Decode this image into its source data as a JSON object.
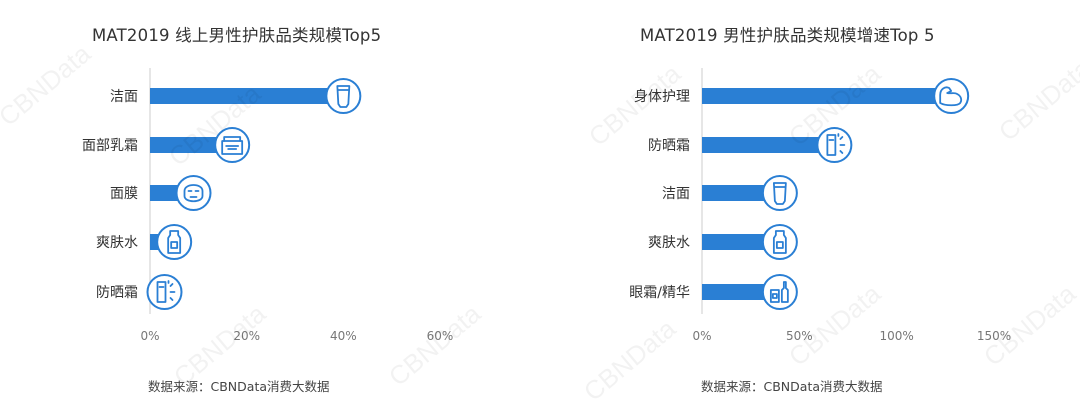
{
  "colors": {
    "bar": "#2a7fd4",
    "icon": "#2a7fd4",
    "text": "#333333",
    "tick": "#777777"
  },
  "watermark_text": "CBNData",
  "chart_data": [
    {
      "type": "bar",
      "orientation": "horizontal",
      "title": "MAT2019 线上男性护肤品类规模Top5",
      "categories": [
        "洁面",
        "面部乳霜",
        "面膜",
        "爽肤水",
        "防晒霜"
      ],
      "values": [
        40,
        17,
        9,
        5,
        3
      ],
      "unit": "%",
      "xlim": [
        0,
        60
      ],
      "ticks": [
        0,
        20,
        40,
        60
      ],
      "tick_labels": [
        "0%",
        "20%",
        "40%",
        "60%"
      ],
      "icons": [
        "tube-icon",
        "cream-jar-icon",
        "face-mask-icon",
        "bottle-icon",
        "sunscreen-icon"
      ],
      "grid": false,
      "source": "数据来源：CBNData消费大数据"
    },
    {
      "type": "bar",
      "orientation": "horizontal",
      "title": "MAT2019 男性护肤品类规模增速Top 5",
      "categories": [
        "身体护理",
        "防晒霜",
        "洁面",
        "爽肤水",
        "眼霜/精华"
      ],
      "values": [
        128,
        68,
        40,
        40,
        40
      ],
      "unit": "%",
      "xlim": [
        0,
        150
      ],
      "ticks": [
        0,
        50,
        100,
        150
      ],
      "tick_labels": [
        "0%",
        "50%",
        "100%",
        "150%"
      ],
      "icons": [
        "arm-muscle-icon",
        "sunscreen-icon",
        "tube-icon",
        "bottle-icon",
        "serum-dropper-icon"
      ],
      "grid": false,
      "source": "数据来源：CBNData消费大数据"
    }
  ]
}
